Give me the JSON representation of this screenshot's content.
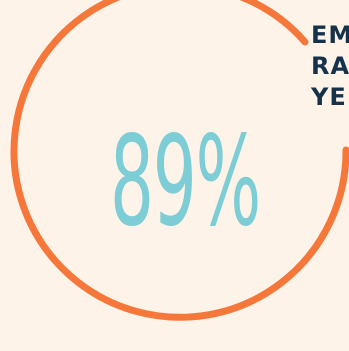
{
  "stat": {
    "value_label": "89%",
    "value": 89,
    "color": "#7ccdd5"
  },
  "ring": {
    "color": "#f5773a"
  },
  "caption": {
    "lines": [
      "EM",
      "RA",
      "YE"
    ],
    "color": "#16324a"
  },
  "background": "#fdf3e8"
}
